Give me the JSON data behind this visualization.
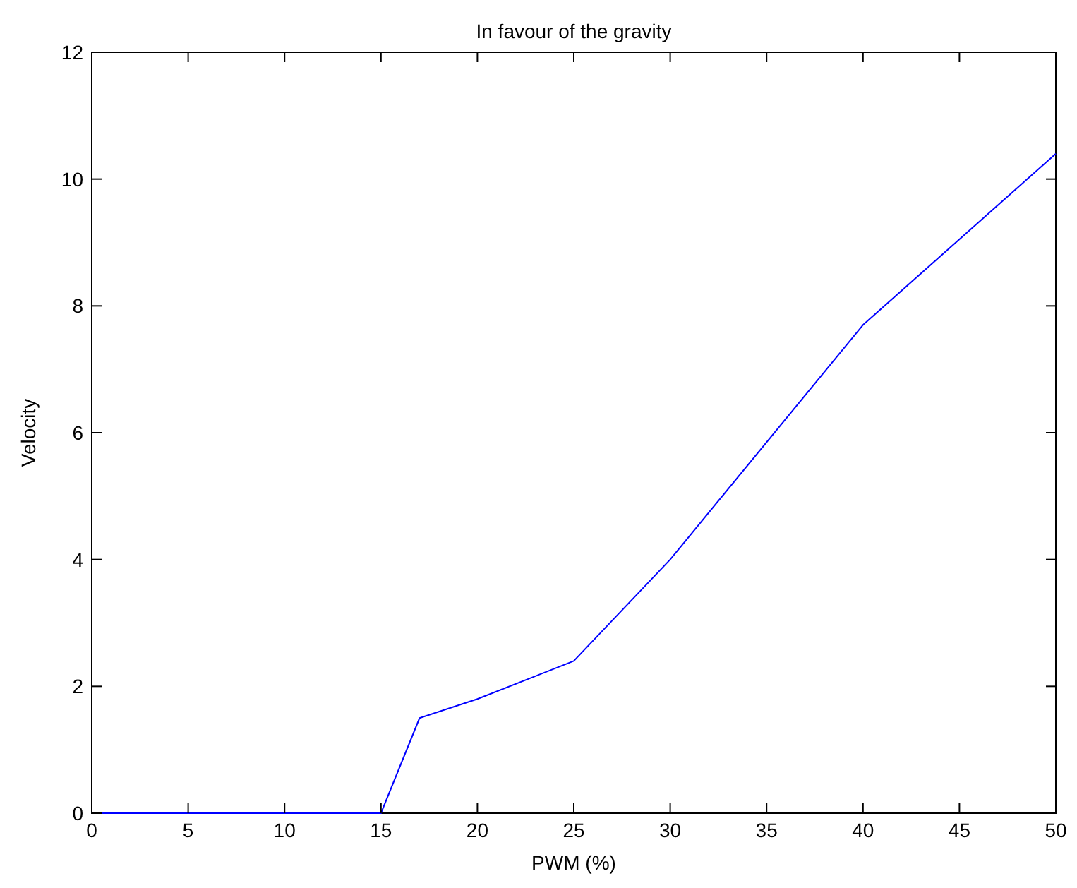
{
  "chart_data": {
    "type": "line",
    "title": "In favour of the gravity",
    "xlabel": "PWM (%)",
    "ylabel": "Velocity",
    "x": [
      0,
      5,
      10,
      15,
      17,
      20,
      25,
      30,
      40,
      50
    ],
    "series": [
      {
        "color": "#0000ff",
        "values": [
          0,
          0,
          0,
          0,
          1.5,
          1.8,
          2.4,
          4,
          7.7,
          10.4
        ]
      }
    ],
    "xlim": [
      0,
      50
    ],
    "xticks": [
      0,
      5,
      10,
      15,
      20,
      25,
      30,
      35,
      40,
      45,
      50
    ],
    "ylim": [
      0,
      12
    ],
    "yticks": [
      0,
      2,
      4,
      6,
      8,
      10,
      12
    ],
    "grid": false,
    "marker": "none",
    "line_style": "solid"
  }
}
